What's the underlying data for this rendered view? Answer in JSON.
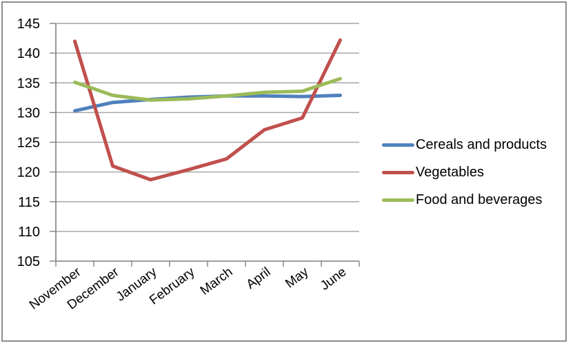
{
  "chart_data": {
    "type": "line",
    "title": "",
    "categories": [
      "November",
      "December",
      "January",
      "February",
      "March",
      "April",
      "May",
      "June"
    ],
    "series": [
      {
        "name": "Cereals and products",
        "color": "#4F81BD",
        "values": [
          130.3,
          131.7,
          132.2,
          132.6,
          132.8,
          132.8,
          132.7,
          132.9
        ]
      },
      {
        "name": "Vegetables",
        "color": "#C0504D",
        "values": [
          142.0,
          121.0,
          118.7,
          120.4,
          122.2,
          127.1,
          129.1,
          142.2
        ]
      },
      {
        "name": "Food and beverages",
        "color": "#9BBB59",
        "values": [
          135.1,
          132.9,
          132.1,
          132.3,
          132.8,
          133.4,
          133.6,
          135.7
        ]
      }
    ],
    "ylim": [
      105,
      145
    ],
    "ytick_step": 5,
    "y_tick_labels": [
      "105",
      "110",
      "115",
      "120",
      "125",
      "130",
      "135",
      "140",
      "145"
    ],
    "xlabel": "",
    "ylabel": "",
    "grid": "horizontal",
    "legend_position": "right",
    "x_label_rotation_deg": -37,
    "line_width": 5,
    "colors": {
      "axis": "#7F7F7F",
      "gridline": "#A6A6A6",
      "text": "#000000",
      "chart_border": "#8C8C8C",
      "background": "#FFFFFF"
    }
  }
}
